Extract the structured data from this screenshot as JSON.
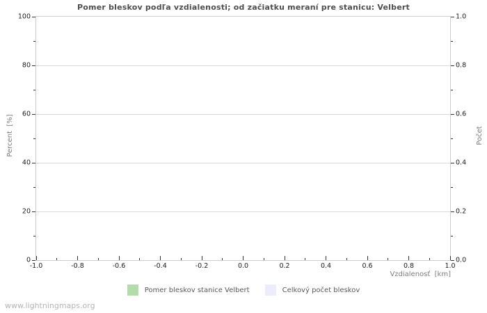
{
  "watermark": "www.lightningmaps.org",
  "chart_data": {
    "type": "bar",
    "title": "Pomer bleskov podľa vzdialenosti; od začiatku meraní pre stanicu: Velbert",
    "plot_empty": true,
    "grid": "horizontal-only",
    "legend_position": "bottom",
    "colors": {
      "background": "#ffffff",
      "frame": "#cccccc",
      "grid": "#d9d9d9",
      "tick": "#333333",
      "series_percent": "#b4dbac",
      "series_count": "#ececfb"
    },
    "x_axis": {
      "label": "Vzdialenosť  [km]",
      "range": [
        -1,
        1
      ],
      "minor_step": 0.1,
      "major_ticks": [
        {
          "v": -1.0,
          "label": "-1.0"
        },
        {
          "v": -0.8,
          "label": "-0.8"
        },
        {
          "v": -0.6,
          "label": "-0.6"
        },
        {
          "v": -0.4,
          "label": "-0.4"
        },
        {
          "v": -0.2,
          "label": "-0.2"
        },
        {
          "v": 0.0,
          "label": "0.0"
        },
        {
          "v": 0.2,
          "label": "0.2"
        },
        {
          "v": 0.4,
          "label": "0.4"
        },
        {
          "v": 0.6,
          "label": "0.6"
        },
        {
          "v": 0.8,
          "label": "0.8"
        },
        {
          "v": 1.0,
          "label": "1.0"
        }
      ]
    },
    "y_left": {
      "label": "Percent  [%]",
      "range": [
        0,
        100
      ],
      "minor_step": 10,
      "grid_values": [
        20,
        40,
        60,
        80
      ],
      "major_ticks": [
        {
          "v": 0,
          "label": "0"
        },
        {
          "v": 20,
          "label": "20"
        },
        {
          "v": 40,
          "label": "40"
        },
        {
          "v": 60,
          "label": "60"
        },
        {
          "v": 80,
          "label": "80"
        },
        {
          "v": 100,
          "label": "100"
        }
      ]
    },
    "y_right": {
      "label": "Počet",
      "range": [
        0,
        1
      ],
      "minor_step": 0.1,
      "major_ticks": [
        {
          "v": 0.0,
          "label": "0.0"
        },
        {
          "v": 0.2,
          "label": "0.2"
        },
        {
          "v": 0.4,
          "label": "0.4"
        },
        {
          "v": 0.6,
          "label": "0.6"
        },
        {
          "v": 0.8,
          "label": "0.8"
        },
        {
          "v": 1.0,
          "label": "1.0"
        }
      ]
    },
    "series": [
      {
        "name": "Pomer bleskov stanice Velbert",
        "color": "#b4dbac",
        "values": []
      },
      {
        "name": "Celkový počet bleskov",
        "color": "#ececfb",
        "values": []
      }
    ]
  }
}
